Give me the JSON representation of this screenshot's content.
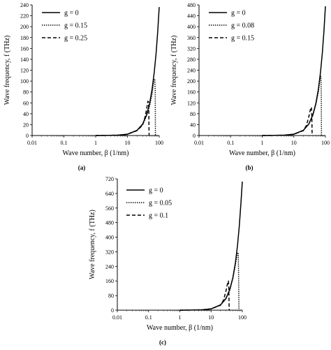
{
  "chart_data": [
    {
      "type": "line",
      "panel_label": "(a)",
      "xlabel": "Wave number, β (1/nm)",
      "ylabel": "Wave frequency, f (THz)",
      "xscale": "log",
      "xlim": [
        0.01,
        100
      ],
      "ylim": [
        0,
        240
      ],
      "x_ticks": [
        "0.01",
        "0.1",
        "1",
        "10",
        "100"
      ],
      "y_ticks": [
        "0",
        "20",
        "40",
        "60",
        "80",
        "100",
        "120",
        "140",
        "160",
        "180",
        "200",
        "220",
        "240"
      ],
      "legend_position": "top-left",
      "series": [
        {
          "name": "g = 0",
          "style": "solid",
          "x": [
            1,
            2,
            5,
            10,
            20,
            30,
            40,
            50,
            60,
            70,
            80,
            90,
            95,
            100
          ],
          "y": [
            0,
            0.1,
            0.6,
            2.4,
            9.5,
            21,
            38,
            59,
            86,
            117,
            152,
            192,
            215,
            236
          ]
        },
        {
          "name": "g = 0.15",
          "style": "dotted",
          "x": [
            1,
            5,
            10,
            20,
            30,
            40,
            50,
            60,
            66,
            70,
            73,
            75,
            76
          ],
          "y": [
            0,
            0.6,
            2.4,
            9.4,
            20,
            36,
            55,
            77,
            96,
            104,
            102,
            80,
            0
          ]
        },
        {
          "name": "g = 0.25",
          "style": "dashed",
          "x": [
            1,
            5,
            10,
            20,
            30,
            35,
            40,
            44,
            46,
            47,
            48
          ],
          "y": [
            0,
            0.6,
            2.3,
            9,
            19,
            32,
            48,
            63,
            62,
            45,
            0
          ]
        }
      ]
    },
    {
      "type": "line",
      "panel_label": "(b)",
      "xlabel": "Wave number, β (1/nm)",
      "ylabel": "Wave frequency, f (THz)",
      "xscale": "log",
      "xlim": [
        0.01,
        100
      ],
      "ylim": [
        0,
        480
      ],
      "x_ticks": [
        "0.01",
        "0.1",
        "1",
        "10",
        "100"
      ],
      "y_ticks": [
        "0",
        "40",
        "80",
        "120",
        "160",
        "200",
        "240",
        "280",
        "320",
        "360",
        "400",
        "440",
        "480"
      ],
      "legend_position": "top-left",
      "series": [
        {
          "name": "g = 0",
          "style": "solid",
          "x": [
            1,
            2,
            5,
            10,
            20,
            30,
            40,
            50,
            60,
            70,
            80,
            90,
            100
          ],
          "y": [
            0,
            0.2,
            1.2,
            4.8,
            19,
            43,
            76,
            119,
            171,
            233,
            304,
            385,
            475
          ]
        },
        {
          "name": "g = 0.08",
          "style": "dotted",
          "x": [
            1,
            5,
            10,
            20,
            30,
            40,
            50,
            60,
            66,
            70,
            72,
            74,
            75
          ],
          "y": [
            0,
            1.2,
            4.8,
            19,
            42,
            74,
            114,
            160,
            200,
            220,
            215,
            150,
            0
          ]
        },
        {
          "name": "g = 0.15",
          "style": "dashed",
          "x": [
            1,
            5,
            10,
            20,
            25,
            30,
            34,
            36,
            37,
            38
          ],
          "y": [
            0,
            1.2,
            4.7,
            18,
            37,
            70,
            100,
            104,
            80,
            0
          ]
        }
      ]
    },
    {
      "type": "line",
      "panel_label": "(c)",
      "xlabel": "Wave number, β (1/nm)",
      "ylabel": "Wave frequency, f (THz)",
      "xscale": "log",
      "xlim": [
        0.01,
        100
      ],
      "ylim": [
        0,
        720
      ],
      "x_ticks": [
        "0.01",
        "0.1",
        "1",
        "10",
        "100"
      ],
      "y_ticks": [
        "0",
        "80",
        "160",
        "240",
        "320",
        "400",
        "480",
        "560",
        "640",
        "720"
      ],
      "legend_position": "top-left",
      "series": [
        {
          "name": "g = 0",
          "style": "solid",
          "x": [
            1,
            2,
            5,
            10,
            20,
            30,
            40,
            50,
            60,
            70,
            80,
            90,
            100
          ],
          "y": [
            0,
            0.3,
            1.8,
            7.2,
            29,
            65,
            115,
            180,
            259,
            353,
            461,
            583,
            705
          ]
        },
        {
          "name": "g = 0.05",
          "style": "dotted",
          "x": [
            1,
            5,
            10,
            20,
            30,
            40,
            50,
            60,
            66,
            70,
            74,
            76,
            78
          ],
          "y": [
            0,
            1.8,
            7.2,
            28,
            62,
            112,
            175,
            250,
            290,
            316,
            310,
            200,
            0
          ]
        },
        {
          "name": "g = 0.1",
          "style": "dashed",
          "x": [
            1,
            5,
            10,
            20,
            25,
            30,
            34,
            36,
            37,
            38
          ],
          "y": [
            0,
            1.8,
            7,
            27,
            55,
            105,
            150,
            160,
            120,
            0
          ]
        }
      ]
    }
  ]
}
